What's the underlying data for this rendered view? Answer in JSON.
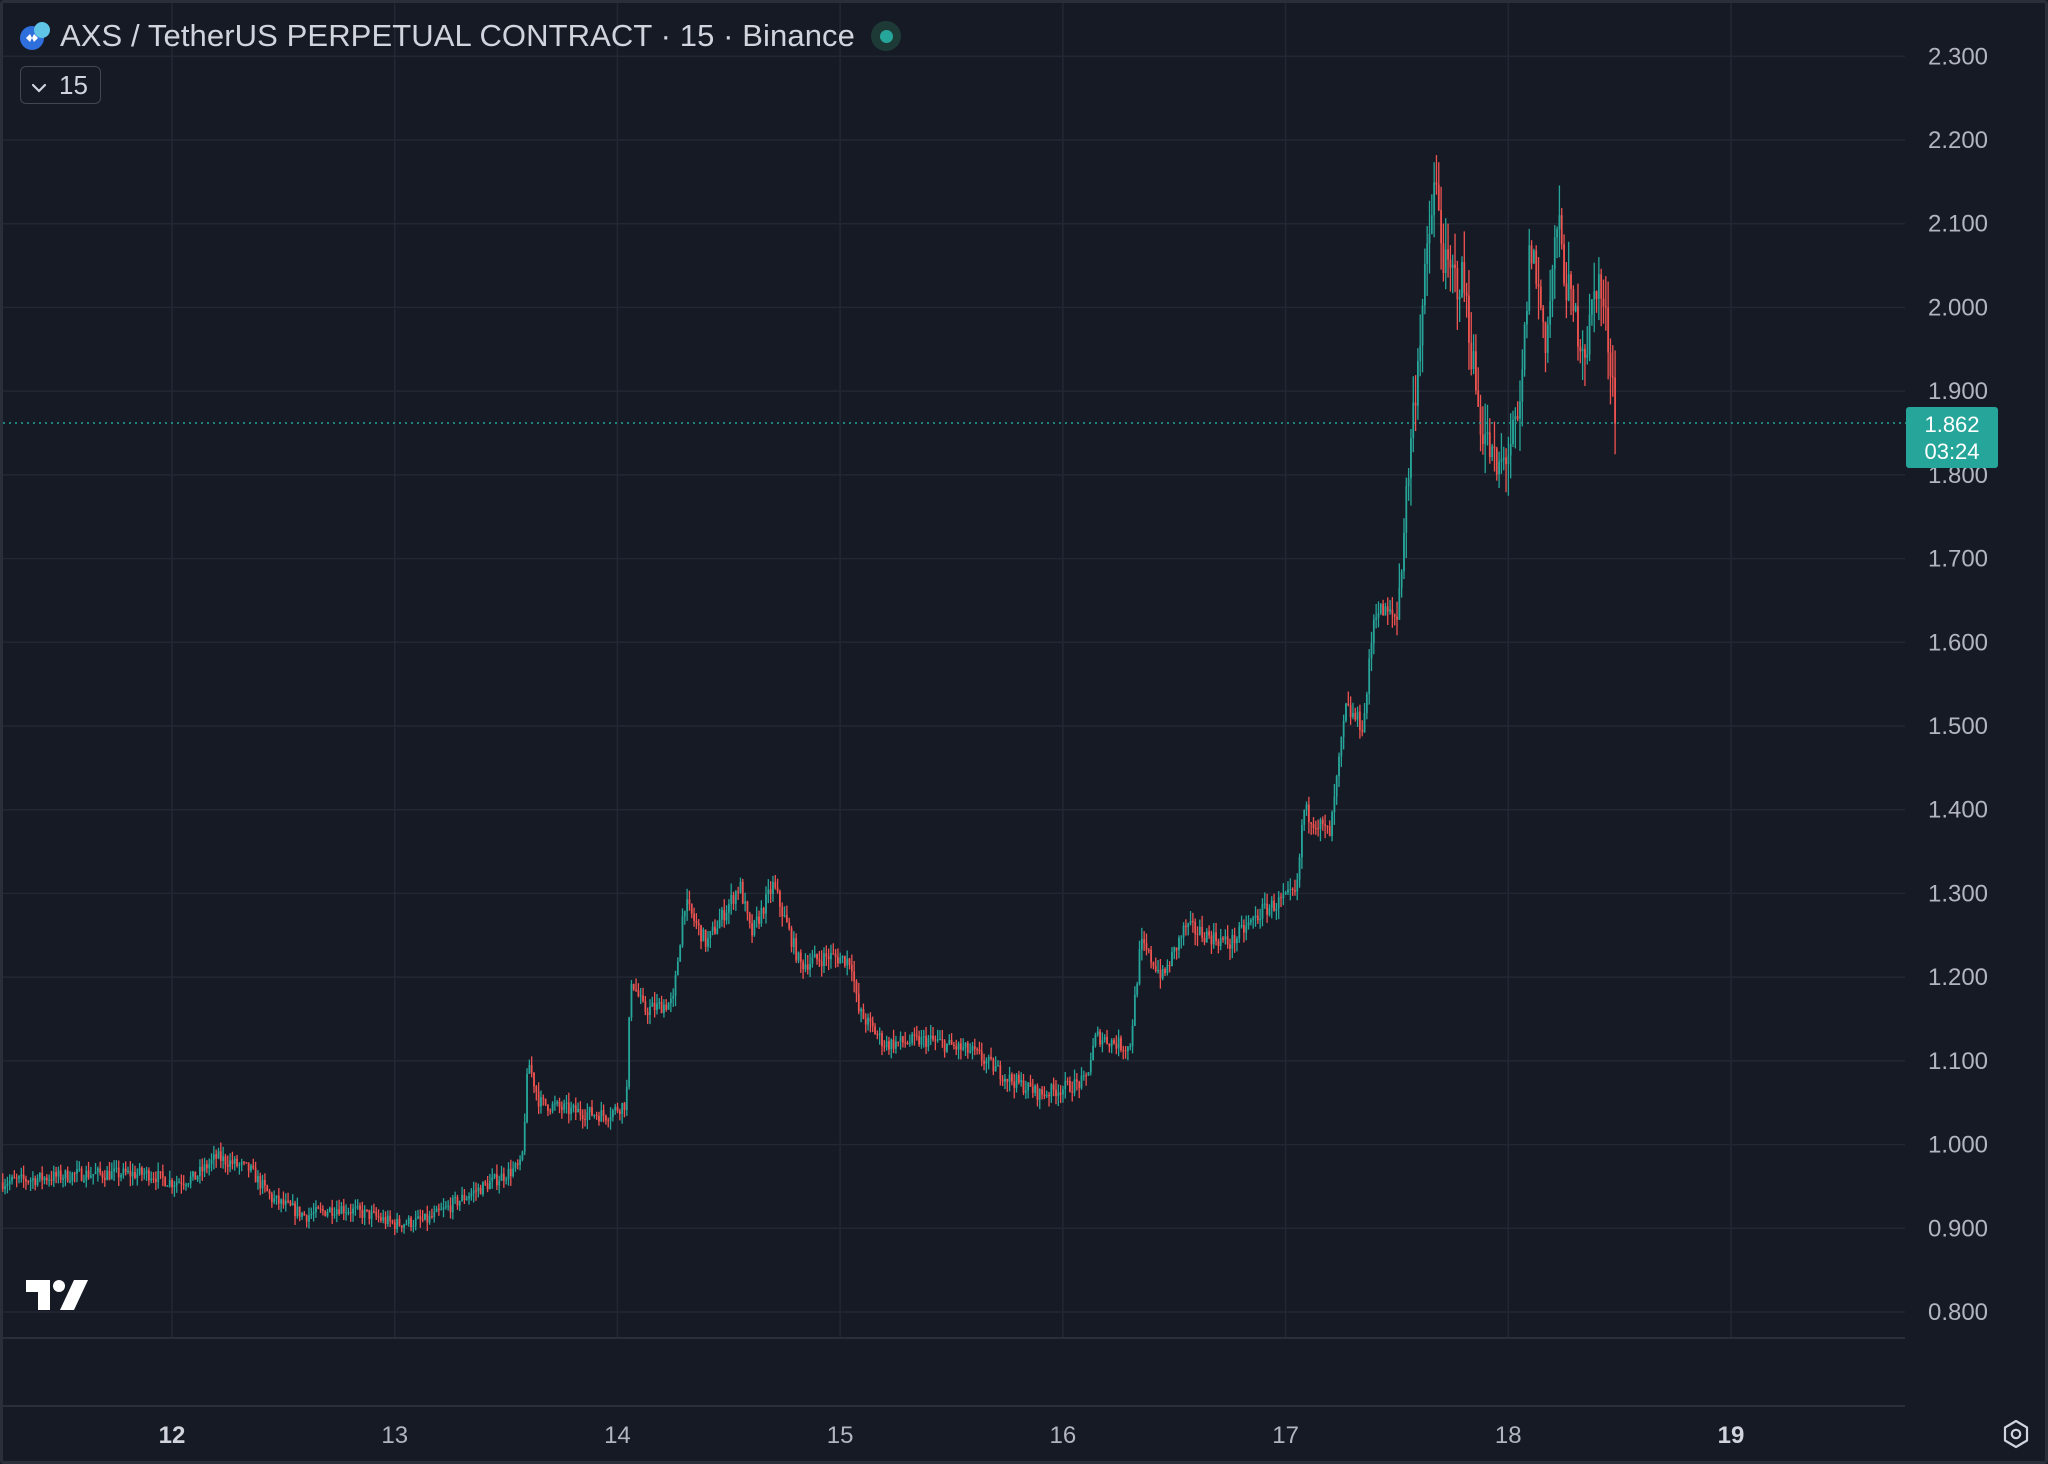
{
  "header": {
    "title": "AXS / TetherUS PERPETUAL CONTRACT · 15 · Binance",
    "interval_button_label": "15"
  },
  "price_badge": {
    "price": "1.862",
    "countdown": "03:24"
  },
  "icons": {
    "symbol_logo": "axs-logo-icon",
    "tv_logo": "tradingview-logo-icon",
    "settings": "gear-icon",
    "interval": "chevron-down-icon",
    "status": "market-open-dot-icon"
  },
  "colors": {
    "background": "#161a25",
    "grid": "#232734",
    "up": "#26a69a",
    "down": "#ef5350",
    "axis_text": "#b2b5be"
  },
  "chart_data": {
    "type": "candlestick",
    "title": "AXS / TetherUS PERPETUAL CONTRACT · 15 · Binance",
    "y_ticks": [
      "2.300",
      "2.200",
      "2.100",
      "2.000",
      "1.900",
      "1.800",
      "1.700",
      "1.600",
      "1.500",
      "1.400",
      "1.300",
      "1.200",
      "1.100",
      "1.000",
      "0.900",
      "0.800"
    ],
    "x_ticks": [
      {
        "day": 12,
        "label": "12",
        "bold": true
      },
      {
        "day": 13,
        "label": "13",
        "bold": false
      },
      {
        "day": 14,
        "label": "14",
        "bold": false
      },
      {
        "day": 15,
        "label": "15",
        "bold": false
      },
      {
        "day": 16,
        "label": "16",
        "bold": false
      },
      {
        "day": 17,
        "label": "17",
        "bold": false
      },
      {
        "day": 18,
        "label": "18",
        "bold": false
      },
      {
        "day": 19,
        "label": "19",
        "bold": true
      }
    ],
    "ylim": [
      0.76,
      2.34
    ],
    "xlim_days": [
      11.24,
      19.78
    ],
    "last_price": 1.862,
    "grid": true,
    "price_path": [
      [
        11.24,
        0.955
      ],
      [
        11.6,
        0.965
      ],
      [
        11.9,
        0.965
      ],
      [
        12.0,
        0.955
      ],
      [
        12.1,
        0.96
      ],
      [
        12.2,
        0.985
      ],
      [
        12.35,
        0.97
      ],
      [
        12.45,
        0.935
      ],
      [
        12.6,
        0.915
      ],
      [
        12.75,
        0.925
      ],
      [
        12.9,
        0.915
      ],
      [
        13.0,
        0.905
      ],
      [
        13.15,
        0.91
      ],
      [
        13.3,
        0.935
      ],
      [
        13.5,
        0.965
      ],
      [
        13.57,
        0.975
      ],
      [
        13.6,
        1.1
      ],
      [
        13.65,
        1.05
      ],
      [
        13.8,
        1.04
      ],
      [
        13.95,
        1.035
      ],
      [
        14.04,
        1.05
      ],
      [
        14.06,
        1.2
      ],
      [
        14.12,
        1.16
      ],
      [
        14.25,
        1.17
      ],
      [
        14.3,
        1.29
      ],
      [
        14.4,
        1.24
      ],
      [
        14.55,
        1.31
      ],
      [
        14.6,
        1.25
      ],
      [
        14.7,
        1.31
      ],
      [
        14.82,
        1.215
      ],
      [
        14.95,
        1.225
      ],
      [
        15.05,
        1.22
      ],
      [
        15.08,
        1.16
      ],
      [
        15.2,
        1.12
      ],
      [
        15.4,
        1.125
      ],
      [
        15.6,
        1.11
      ],
      [
        15.75,
        1.08
      ],
      [
        15.9,
        1.06
      ],
      [
        16.1,
        1.075
      ],
      [
        16.15,
        1.13
      ],
      [
        16.3,
        1.115
      ],
      [
        16.35,
        1.24
      ],
      [
        16.45,
        1.2
      ],
      [
        16.55,
        1.26
      ],
      [
        16.75,
        1.24
      ],
      [
        16.9,
        1.28
      ],
      [
        17.05,
        1.3
      ],
      [
        17.08,
        1.4
      ],
      [
        17.2,
        1.37
      ],
      [
        17.27,
        1.52
      ],
      [
        17.35,
        1.5
      ],
      [
        17.4,
        1.64
      ],
      [
        17.5,
        1.63
      ],
      [
        17.55,
        1.8
      ],
      [
        17.6,
        1.96
      ],
      [
        17.67,
        2.15
      ],
      [
        17.72,
        2.04
      ],
      [
        17.8,
        2.03
      ],
      [
        17.87,
        1.87
      ],
      [
        17.95,
        1.8
      ],
      [
        18.05,
        1.86
      ],
      [
        18.1,
        2.08
      ],
      [
        18.17,
        1.96
      ],
      [
        18.22,
        2.1
      ],
      [
        18.28,
        2.0
      ],
      [
        18.35,
        1.95
      ],
      [
        18.4,
        2.04
      ],
      [
        18.45,
        1.96
      ],
      [
        18.49,
        1.86
      ]
    ]
  }
}
